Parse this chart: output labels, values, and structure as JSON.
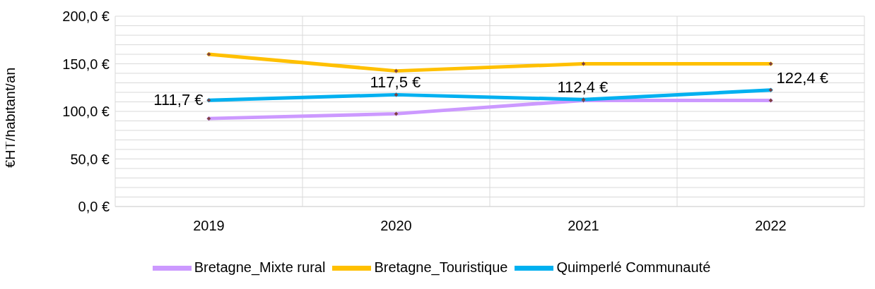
{
  "chart_data": {
    "type": "line",
    "ylabel": "€HT/habitant/an",
    "categories": [
      "2019",
      "2020",
      "2021",
      "2022"
    ],
    "series": [
      {
        "name": "Bretagne_Mixte rural",
        "color": "#cc99ff",
        "values": [
          92.5,
          97.5,
          111.5,
          111.5
        ]
      },
      {
        "name": "Bretagne_Touristique",
        "color": "#ffc000",
        "values": [
          160,
          142.5,
          150,
          150
        ]
      },
      {
        "name": "Quimperlé Communauté",
        "color": "#00b0f0",
        "values": [
          111.7,
          117.5,
          112.4,
          122.4
        ],
        "value_labels": [
          "111,7 €",
          "117,5 €",
          "112,4 €",
          "122,4 €"
        ]
      }
    ],
    "ylim": [
      0,
      200
    ],
    "yticks": [
      {
        "value": 0,
        "label": "0,0 €"
      },
      {
        "value": 10,
        "label": null
      },
      {
        "value": 20,
        "label": null
      },
      {
        "value": 30,
        "label": null
      },
      {
        "value": 40,
        "label": null
      },
      {
        "value": 50,
        "label": "50,0 €"
      },
      {
        "value": 60,
        "label": null
      },
      {
        "value": 70,
        "label": null
      },
      {
        "value": 80,
        "label": null
      },
      {
        "value": 90,
        "label": null
      },
      {
        "value": 100,
        "label": "100,0 €"
      },
      {
        "value": 110,
        "label": null
      },
      {
        "value": 120,
        "label": null
      },
      {
        "value": 130,
        "label": null
      },
      {
        "value": 140,
        "label": null
      },
      {
        "value": 150,
        "label": "150,0 €"
      },
      {
        "value": 160,
        "label": null
      },
      {
        "value": 170,
        "label": null
      },
      {
        "value": 180,
        "label": null
      },
      {
        "value": 190,
        "label": null
      },
      {
        "value": 200,
        "label": "200,0 €"
      }
    ],
    "grid": true,
    "legend": "bottom",
    "marker": "diamond",
    "line_style": "solid"
  }
}
